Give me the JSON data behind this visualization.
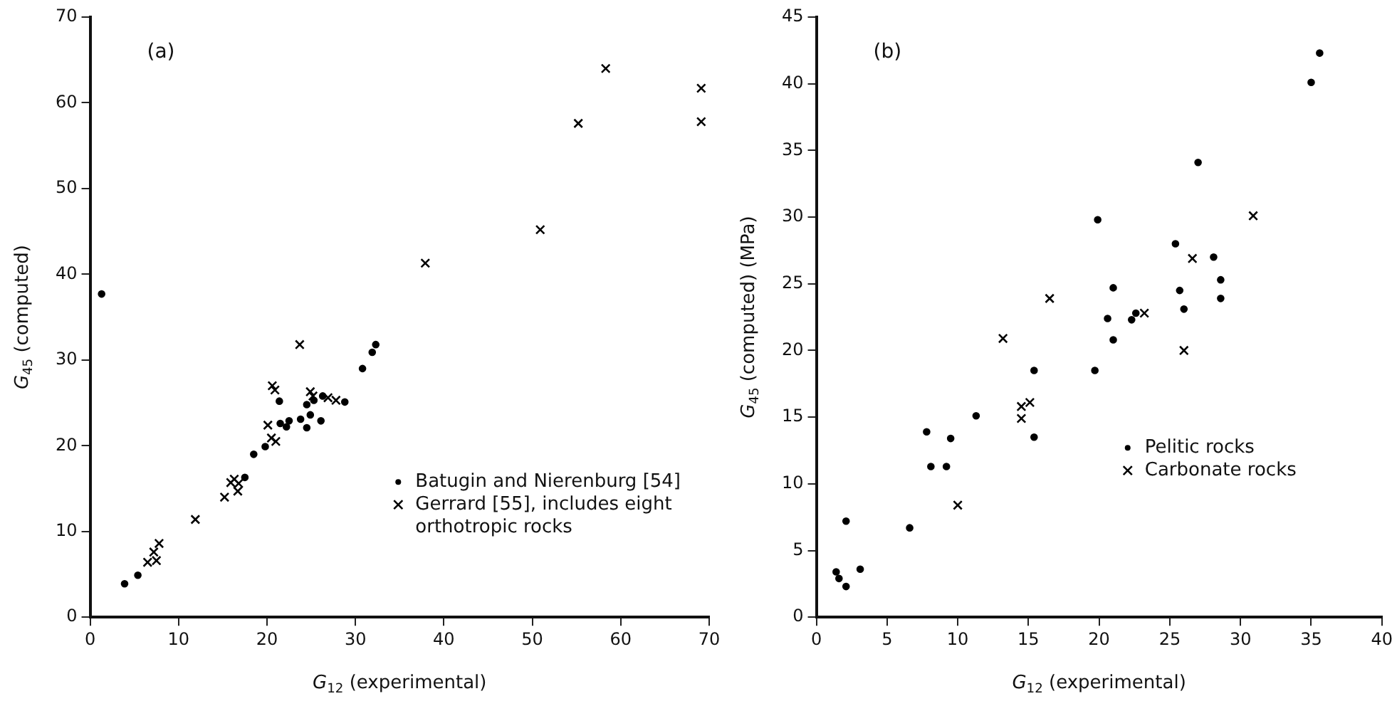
{
  "chart_data": [
    {
      "type": "scatter",
      "xlabel": "G$_{12}$ (experimental)",
      "ylabel": "G$_{45}$ (computed)",
      "annotations": [
        "(a)"
      ],
      "xlim": [
        0,
        70
      ],
      "ylim": [
        0,
        70
      ],
      "xticks": [
        0,
        10,
        20,
        30,
        40,
        50,
        60,
        70
      ],
      "yticks": [
        0,
        10,
        20,
        30,
        40,
        50,
        60,
        70
      ],
      "grid": false,
      "legend": "bottom right",
      "series": [
        {
          "name": "Batugin and Nierenburg [54]",
          "color": "#000000",
          "marker": "circle",
          "x": [
            1.3,
            3.9,
            5.4,
            17.5,
            18.5,
            19.8,
            21.4,
            21.5,
            22.2,
            22.5,
            23.8,
            24.5,
            24.5,
            24.9,
            26.1,
            26.3,
            25.3,
            28.8,
            30.8,
            31.9,
            32.3
          ],
          "values": [
            37.7,
            3.9,
            4.9,
            16.3,
            19.0,
            19.9,
            25.2,
            22.6,
            22.2,
            22.9,
            23.1,
            22.1,
            24.8,
            23.6,
            22.9,
            25.8,
            25.3,
            25.1,
            29.0,
            30.9,
            31.8
          ]
        },
        {
          "name": "Gerrard [55], includes eight orthotropic rocks",
          "color": "#000000",
          "marker": "cross",
          "x": [
            6.5,
            7.2,
            7.5,
            7.8,
            11.9,
            15.2,
            15.9,
            16.3,
            16.8,
            16.7,
            20.1,
            20.5,
            21.0,
            20.6,
            20.9,
            23.7,
            25.2,
            26.9,
            24.9,
            27.8,
            37.9,
            50.9,
            55.2,
            58.3,
            69.1,
            69.1
          ],
          "values": [
            6.4,
            7.6,
            6.6,
            8.6,
            11.4,
            14.0,
            15.7,
            16.1,
            15.6,
            14.7,
            22.4,
            20.9,
            20.5,
            27.0,
            26.5,
            31.8,
            25.8,
            25.6,
            26.3,
            25.3,
            41.3,
            45.2,
            57.6,
            64.0,
            61.7,
            57.8
          ]
        }
      ]
    },
    {
      "type": "scatter",
      "xlabel": "G$_{12}$ (experimental)",
      "ylabel": "G$_{45}$ (computed) (MPa)",
      "annotations": [
        "(b)"
      ],
      "xlim": [
        0,
        40
      ],
      "ylim": [
        0,
        45
      ],
      "xticks": [
        0,
        5,
        10,
        15,
        20,
        25,
        30,
        35,
        40
      ],
      "yticks": [
        0,
        5,
        10,
        15,
        20,
        25,
        30,
        35,
        40,
        45
      ],
      "grid": false,
      "legend": "bottom right",
      "series": [
        {
          "name": "Pelitic rocks",
          "color": "#000000",
          "marker": "circle",
          "x": [
            1.4,
            1.6,
            2.1,
            2.1,
            3.1,
            6.6,
            7.8,
            8.1,
            9.2,
            9.5,
            11.3,
            15.4,
            15.4,
            19.9,
            19.7,
            21.0,
            20.6,
            21.0,
            22.3,
            22.6,
            25.4,
            25.7,
            26.0,
            27.0,
            28.1,
            28.6,
            28.6,
            35.0,
            35.6
          ],
          "values": [
            3.4,
            2.9,
            2.3,
            7.2,
            3.6,
            6.7,
            13.9,
            11.3,
            11.3,
            13.4,
            15.1,
            18.5,
            13.5,
            29.8,
            18.5,
            24.7,
            22.4,
            20.8,
            22.3,
            22.8,
            28.0,
            24.5,
            23.1,
            34.1,
            27.0,
            25.3,
            23.9,
            40.1,
            42.3
          ]
        },
        {
          "name": "Carbonate rocks",
          "color": "#000000",
          "marker": "cross",
          "x": [
            13.2,
            14.5,
            14.5,
            15.1,
            10.0,
            16.5,
            23.2,
            26.6,
            26.0,
            30.9
          ],
          "values": [
            20.9,
            15.8,
            14.9,
            16.1,
            8.4,
            23.9,
            22.8,
            26.9,
            20.0,
            30.1
          ]
        }
      ]
    }
  ]
}
